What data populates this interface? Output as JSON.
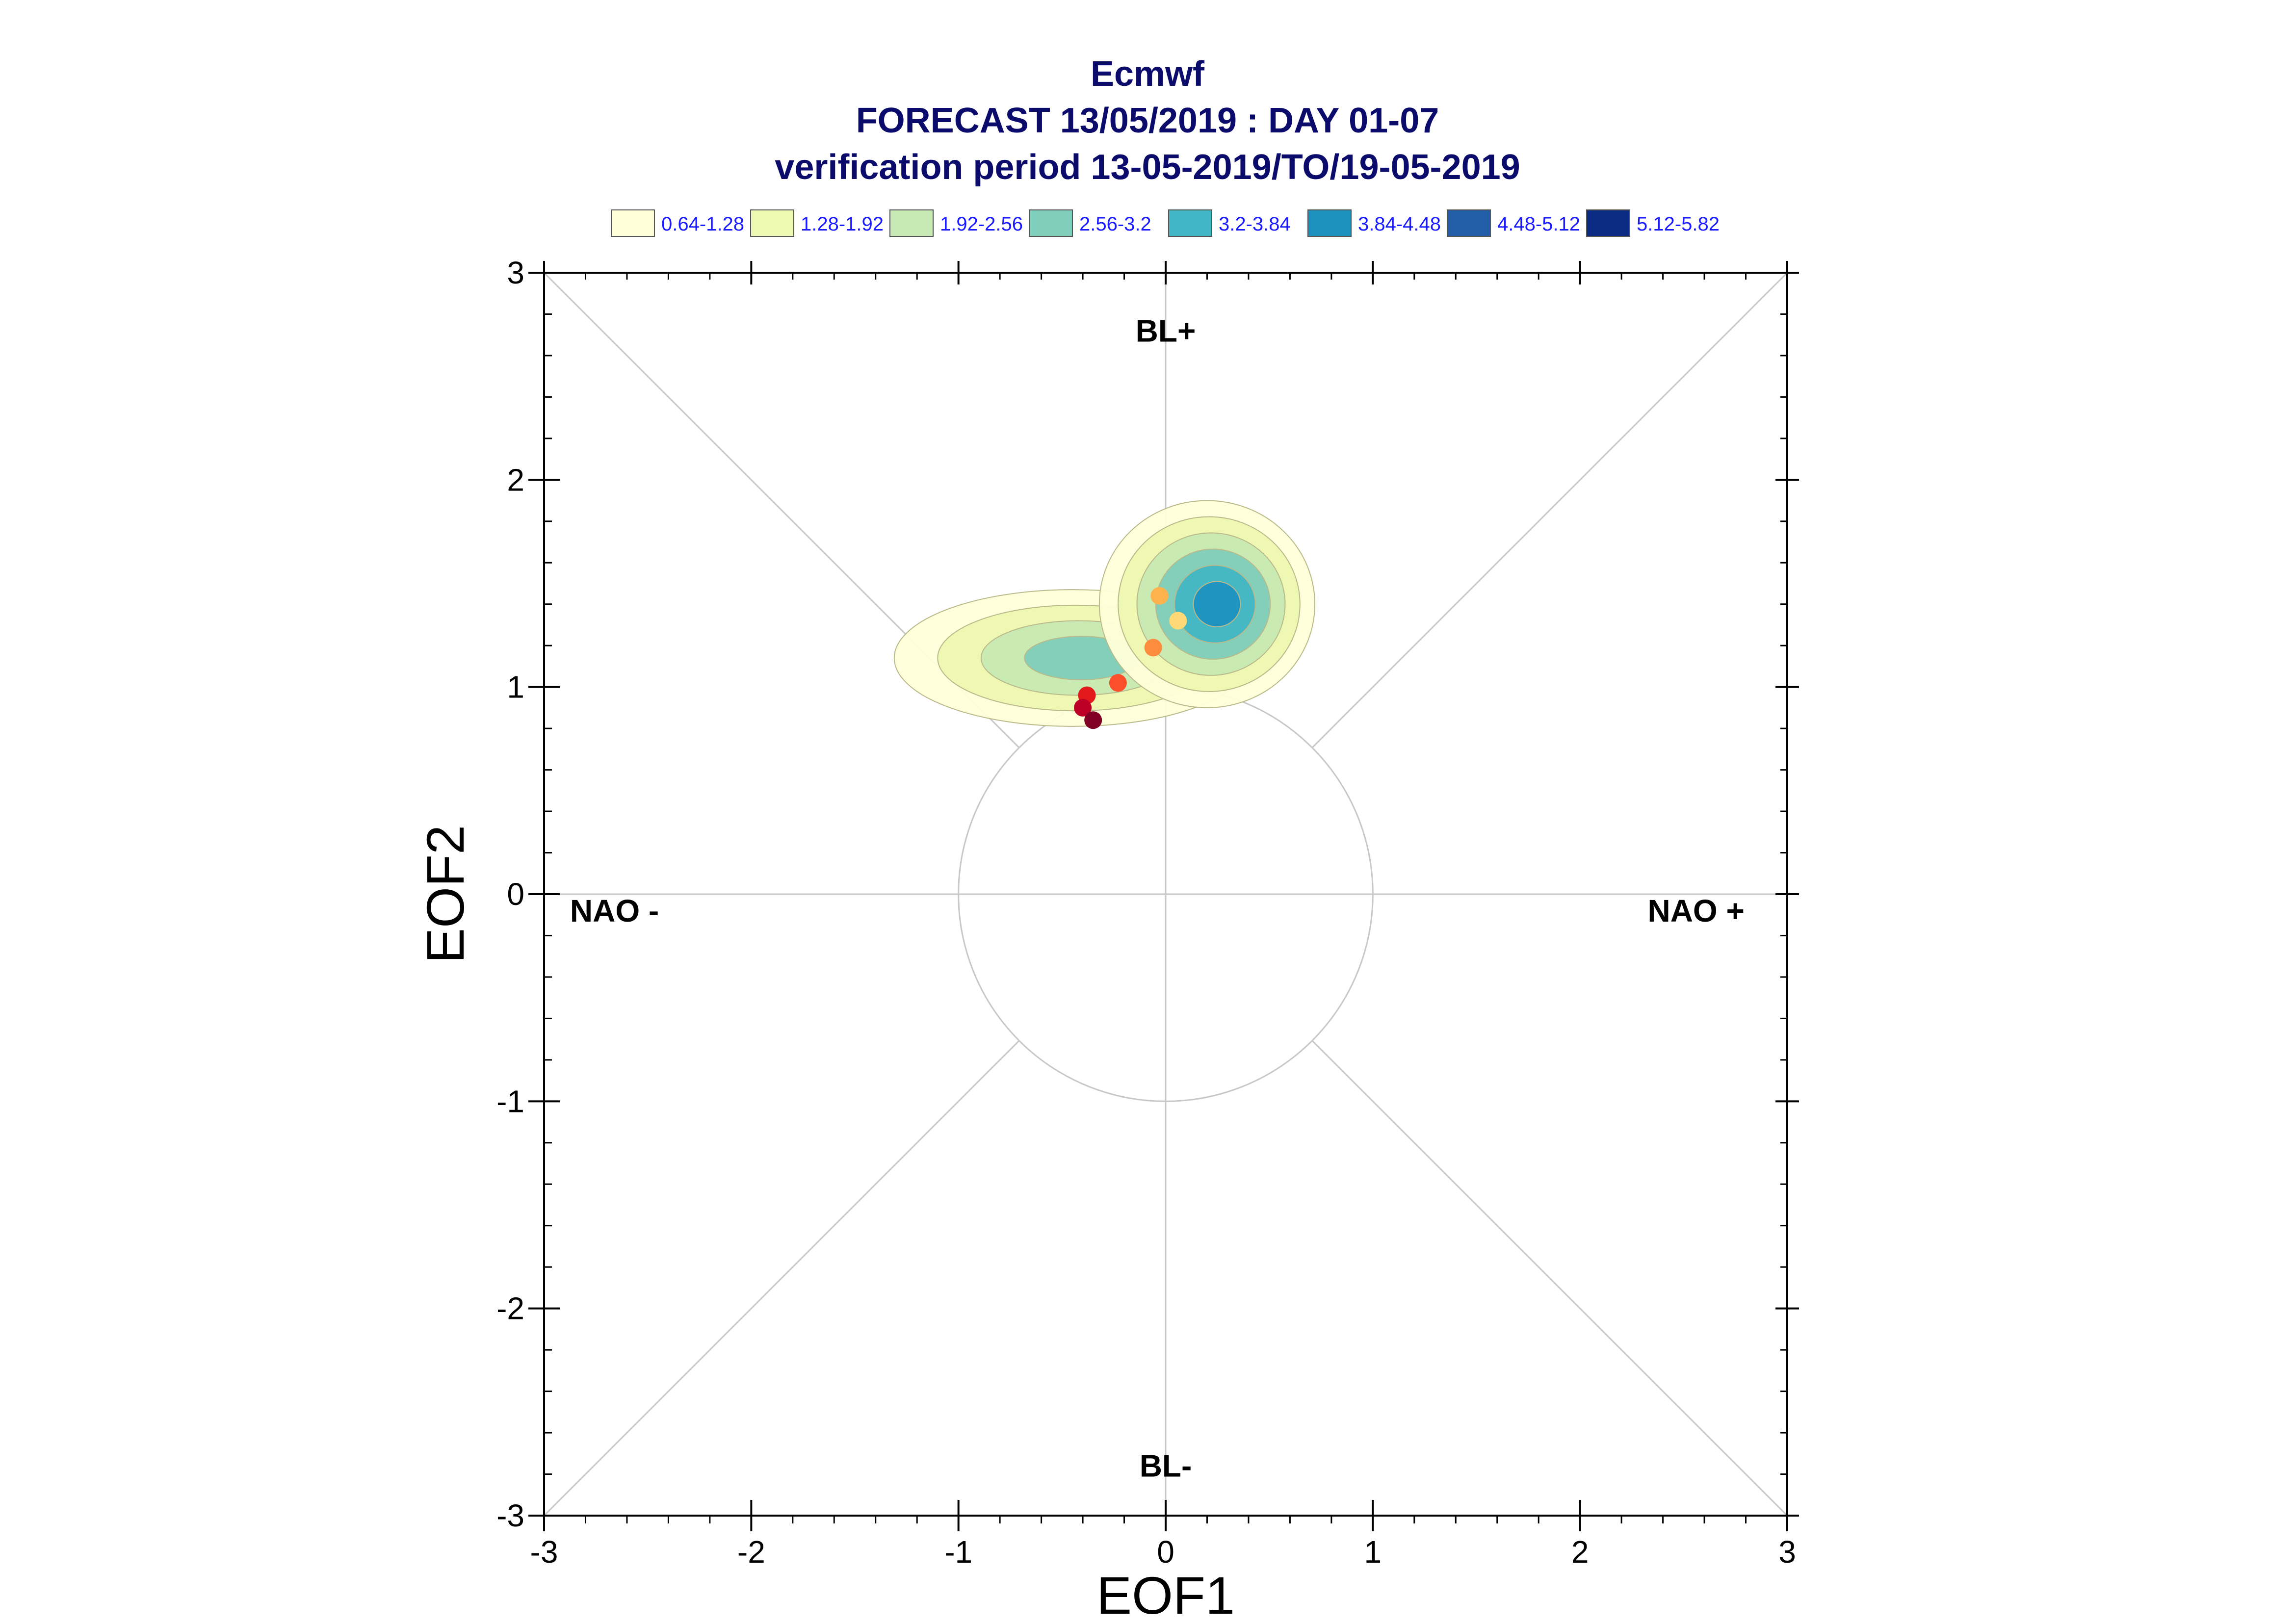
{
  "chart_data": {
    "type": "scatter",
    "title": [
      "Ecmwf",
      "FORECAST 13/05/2019 : DAY 01-07",
      "verification period 13-05-2019/TO/19-05-2019"
    ],
    "xlabel": "EOF1",
    "ylabel": "EOF2",
    "xlim": [
      -3,
      3
    ],
    "ylim": [
      -3,
      3
    ],
    "xticks": [
      "-3",
      "-2",
      "-1",
      "0",
      "1",
      "2",
      "3"
    ],
    "yticks": [
      "-3",
      "-2",
      "-1",
      "0",
      "1",
      "2",
      "3"
    ],
    "grid": false,
    "unit_circle_radius": 1,
    "regimes": [
      {
        "label": "BL+",
        "x": 0.0,
        "y": 2.72
      },
      {
        "label": "BL-",
        "x": 0.0,
        "y": -2.76
      },
      {
        "label": "NAO -",
        "x": -2.66,
        "y": -0.08
      },
      {
        "label": "NAO +",
        "x": 2.56,
        "y": -0.08
      }
    ],
    "legend": {
      "placement": "top",
      "entries": [
        {
          "label": "0.64-1.28",
          "color": "#ffffd9"
        },
        {
          "label": "1.28-1.92",
          "color": "#edf8b1"
        },
        {
          "label": "1.92-2.56",
          "color": "#c7e9b4"
        },
        {
          "label": "2.56-3.2",
          "color": "#7fcdbb"
        },
        {
          "label": "3.2-3.84",
          "color": "#41b6c4"
        },
        {
          "label": "3.84-4.48",
          "color": "#1d91c0"
        },
        {
          "label": "4.48-5.12",
          "color": "#225ea8"
        },
        {
          "label": "5.12-5.82",
          "color": "#0c2c84"
        }
      ]
    },
    "density_clusters": [
      {
        "x": -0.45,
        "y": 1.14,
        "rx": 0.86,
        "ry": 0.33,
        "levels": 4
      },
      {
        "x": 0.2,
        "y": 1.4,
        "rx": 0.52,
        "ry": 0.5,
        "levels": 6
      }
    ],
    "points": [
      {
        "day": 1,
        "x": 0.06,
        "y": 1.32,
        "color": "#fed976"
      },
      {
        "day": 2,
        "x": -0.03,
        "y": 1.44,
        "color": "#feb24c"
      },
      {
        "day": 3,
        "x": -0.06,
        "y": 1.19,
        "color": "#fd8d3c"
      },
      {
        "day": 4,
        "x": -0.23,
        "y": 1.02,
        "color": "#fc4e2a"
      },
      {
        "day": 5,
        "x": -0.38,
        "y": 0.96,
        "color": "#e31a1c"
      },
      {
        "day": 6,
        "x": -0.4,
        "y": 0.9,
        "color": "#bd0026"
      },
      {
        "day": 7,
        "x": -0.35,
        "y": 0.84,
        "color": "#800026"
      }
    ]
  }
}
